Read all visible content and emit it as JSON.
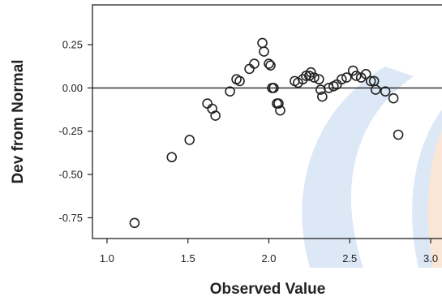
{
  "chart_data": {
    "type": "scatter",
    "title": "",
    "xlabel": "Observed Value",
    "ylabel": "Dev from Normal",
    "xlim": [
      0.91,
      3.07
    ],
    "ylim": [
      -0.87,
      0.48
    ],
    "x_ticks": [
      1.0,
      1.5,
      2.0,
      2.5,
      3.0
    ],
    "x_tick_labels": [
      "1.0",
      "1.5",
      "2.0",
      "2.5",
      "3.0"
    ],
    "y_ticks": [
      0.25,
      0.0,
      -0.25,
      -0.5,
      -0.75
    ],
    "y_tick_labels": [
      "0.25",
      "0.00",
      "-0.25",
      "-0.50",
      "-0.75"
    ],
    "reference_line_y": 0.0,
    "grid": false,
    "legend": "none",
    "colors": {
      "marker": "#222222",
      "axis": "#222222",
      "watermark_blue": "#dde8f7",
      "watermark_orange": "#fbe6d6"
    },
    "series": [
      {
        "values": [
          [
            1.17,
            -0.78
          ],
          [
            1.4,
            -0.4
          ],
          [
            1.51,
            -0.3
          ],
          [
            1.62,
            -0.09
          ],
          [
            1.65,
            -0.12
          ],
          [
            1.67,
            -0.16
          ],
          [
            1.76,
            -0.02
          ],
          [
            1.8,
            0.05
          ],
          [
            1.82,
            0.04
          ],
          [
            1.88,
            0.11
          ],
          [
            1.91,
            0.14
          ],
          [
            1.96,
            0.26
          ],
          [
            1.97,
            0.21
          ],
          [
            2.0,
            0.14
          ],
          [
            2.01,
            0.13
          ],
          [
            2.02,
            0.0
          ],
          [
            2.03,
            0.0
          ],
          [
            2.05,
            -0.09
          ],
          [
            2.06,
            -0.09
          ],
          [
            2.07,
            -0.13
          ],
          [
            2.16,
            0.04
          ],
          [
            2.18,
            0.03
          ],
          [
            2.21,
            0.05
          ],
          [
            2.23,
            0.07
          ],
          [
            2.25,
            0.07
          ],
          [
            2.26,
            0.09
          ],
          [
            2.28,
            0.06
          ],
          [
            2.31,
            0.05
          ],
          [
            2.32,
            -0.01
          ],
          [
            2.33,
            -0.05
          ],
          [
            2.37,
            0.0
          ],
          [
            2.4,
            0.01
          ],
          [
            2.42,
            0.02
          ],
          [
            2.45,
            0.05
          ],
          [
            2.48,
            0.06
          ],
          [
            2.52,
            0.1
          ],
          [
            2.54,
            0.07
          ],
          [
            2.57,
            0.06
          ],
          [
            2.6,
            0.08
          ],
          [
            2.63,
            0.04
          ],
          [
            2.65,
            0.04
          ],
          [
            2.66,
            -0.01
          ],
          [
            2.72,
            -0.02
          ],
          [
            2.77,
            -0.06
          ],
          [
            2.8,
            -0.27
          ]
        ]
      }
    ]
  }
}
